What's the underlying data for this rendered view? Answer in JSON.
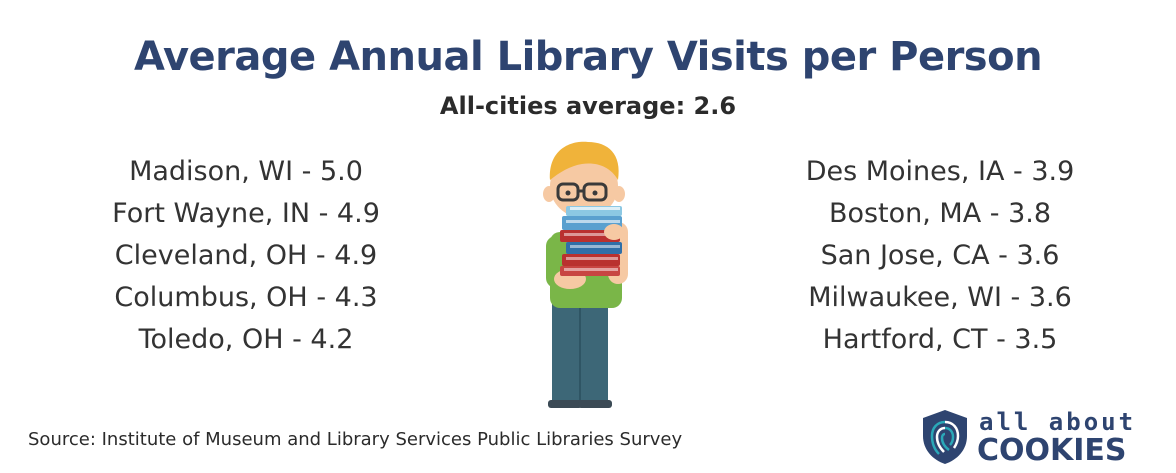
{
  "chart_data": {
    "type": "table",
    "title": "Average Annual Library Visits per Person",
    "subtitle": "All-cities average: 2.6",
    "left_column": [
      {
        "label": "Madison, WI - 5.0",
        "city": "Madison, WI",
        "value": 5.0
      },
      {
        "label": "Fort Wayne, IN - 4.9",
        "city": "Fort Wayne, IN",
        "value": 4.9
      },
      {
        "label": "Cleveland, OH - 4.9",
        "city": "Cleveland, OH",
        "value": 4.9
      },
      {
        "label": "Columbus, OH - 4.3",
        "city": "Columbus, OH",
        "value": 4.3
      },
      {
        "label": "Toledo, OH - 4.2",
        "city": "Toledo, OH",
        "value": 4.2
      }
    ],
    "right_column": [
      {
        "label": "Des Moines, IA - 3.9",
        "city": "Des Moines, IA",
        "value": 3.9
      },
      {
        "label": "Boston, MA - 3.8",
        "city": "Boston, MA",
        "value": 3.8
      },
      {
        "label": "San Jose, CA - 3.6",
        "city": "San Jose, CA",
        "value": 3.6
      },
      {
        "label": "Milwaukee, WI - 3.6",
        "city": "Milwaukee, WI",
        "value": 3.6
      },
      {
        "label": "Hartford, CT - 3.5",
        "city": "Hartford, CT",
        "value": 3.5
      }
    ],
    "source": "Source: Institute of Museum and Library Services Public Libraries Survey"
  },
  "logo": {
    "line1": "all about",
    "line2": "COOKIES",
    "icon": "fingerprint-shield-icon"
  },
  "illustration": {
    "icon": "reader-with-books-icon"
  },
  "colors": {
    "title": "#2e4470",
    "text": "#333333",
    "hair": "#f0b33a",
    "shirt": "#7ab648",
    "pants": "#3d6777",
    "book_red": "#b9312f",
    "book_blue": "#2f6fa8",
    "book_light": "#8cc8e3",
    "logo": "#2e4470",
    "logo_accent": "#2aa8b8"
  }
}
